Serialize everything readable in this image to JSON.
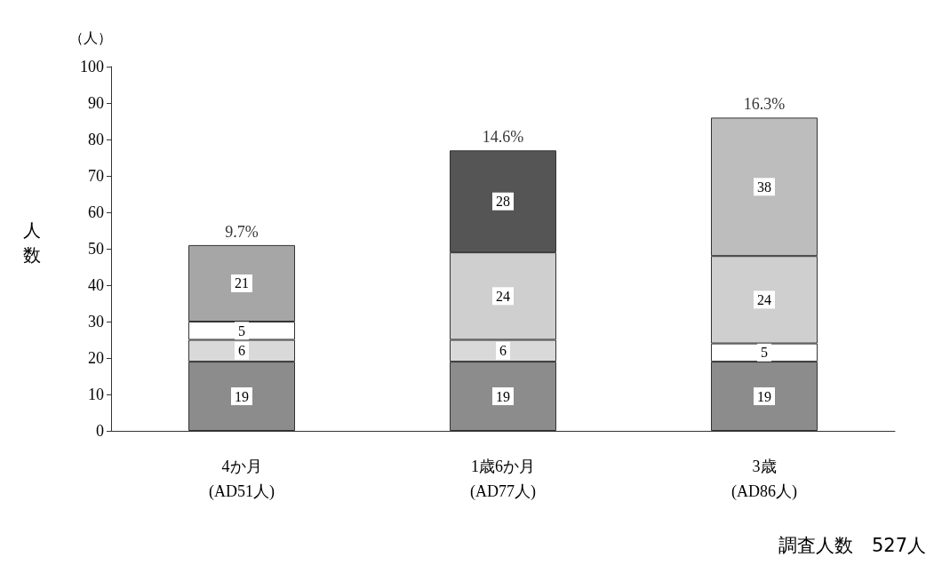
{
  "chart_data": {
    "type": "bar",
    "stacked": true,
    "ylabel": "人数",
    "categories": [
      "4か月\n(AD51人)",
      "1歳6か月\n(AD77人)",
      "3歳\n(AD86人)"
    ],
    "ylim": [
      0,
      100
    ],
    "yticks": [
      0,
      10,
      20,
      30,
      40,
      50,
      60,
      70,
      80,
      90,
      100
    ],
    "grid": false,
    "data_labels": true,
    "series": [
      {
        "color": "#8c8c8c",
        "values": [
          19,
          19,
          19
        ]
      },
      {
        "color": "#d9d9d9",
        "values": [
          6,
          6,
          null
        ]
      },
      {
        "color": "#ffffff",
        "values": [
          5,
          null,
          5
        ]
      },
      {
        "color": "#cfcfcf",
        "values": [
          null,
          24,
          24
        ]
      },
      {
        "color": "#a6a6a6",
        "values": [
          21,
          null,
          null
        ]
      },
      {
        "color": "#555555",
        "values": [
          null,
          28,
          null
        ]
      },
      {
        "color": "#bdbdbd",
        "values": [
          null,
          null,
          38
        ]
      }
    ],
    "annotations": [
      {
        "text": "9.7%",
        "x": "4か月\n(AD51人)",
        "y": 51
      },
      {
        "text": "14.6%",
        "x": "1歳6か月\n(AD77人)",
        "y": 77
      },
      {
        "text": "16.3%",
        "x": "3歳\n(AD86人)",
        "y": 86
      },
      "（人）",
      "調査人数　527人"
    ]
  }
}
